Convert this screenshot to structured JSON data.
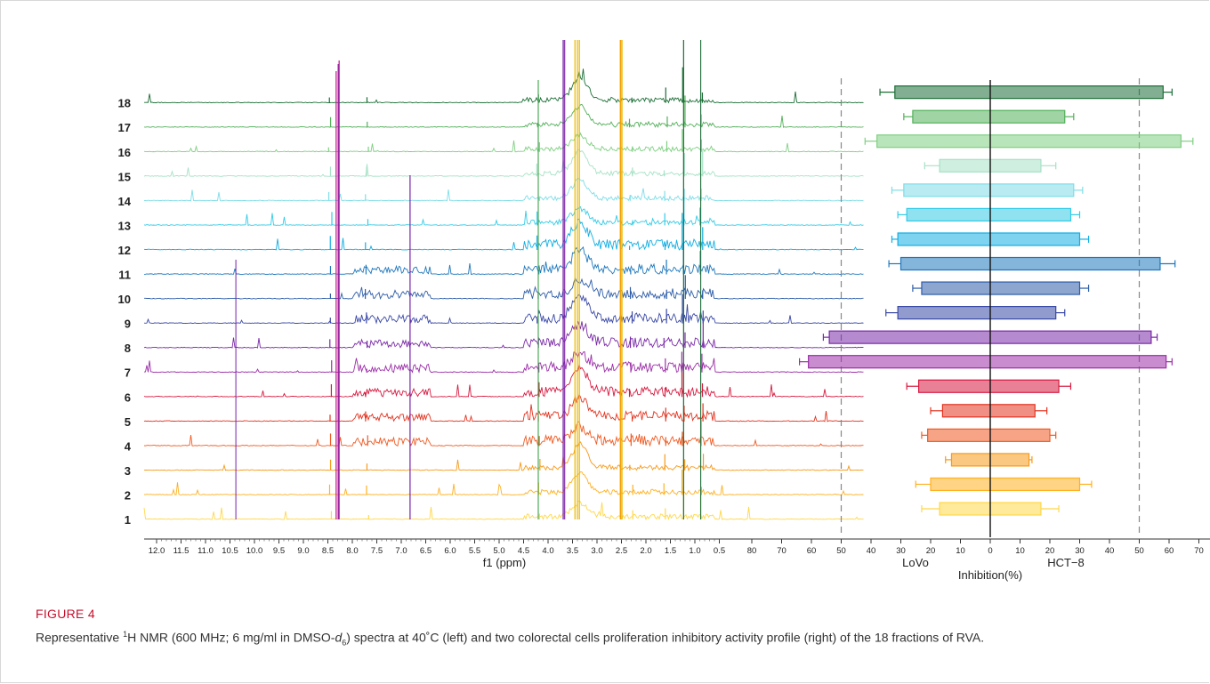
{
  "figure": {
    "label": "FIGURE 4",
    "caption": {
      "prefix": "Representative ",
      "sup": "1",
      "mid": "H NMR (600 MHz; 6 mg/ml in DMSO-",
      "italic": "d",
      "sub": "6",
      "suffix": ") spectra at 40˚C (left) and two colorectal cells proliferation inhibitory activity profile (right) of the 18 fractions of RVA."
    }
  },
  "colors": {
    "fractions": [
      "#ffd84a",
      "#ffb020",
      "#f79a1a",
      "#f05a22",
      "#e3331f",
      "#d7193f",
      "#9c2ea8",
      "#7a2aa8",
      "#3948a6",
      "#2e5da8",
      "#1f78bd",
      "#12aee3",
      "#34cbe6",
      "#7fdde8",
      "#a7e2c6",
      "#7fcf82",
      "#53b05a",
      "#1b6e36"
    ],
    "spike_purple": "#7a22a8",
    "spike_magenta": "#c2148a",
    "spike_gold": "#e8b800"
  },
  "nmr": {
    "rows": [
      "1",
      "2",
      "3",
      "4",
      "5",
      "6",
      "7",
      "8",
      "9",
      "10",
      "11",
      "12",
      "13",
      "14",
      "15",
      "16",
      "17",
      "18"
    ],
    "xticks": [
      "12.0",
      "11.5",
      "11.0",
      "10.5",
      "10.0",
      "9.5",
      "9.0",
      "8.5",
      "8.0",
      "7.5",
      "7.0",
      "6.5",
      "6.0",
      "5.5",
      "5.0",
      "4.5",
      "4.0",
      "3.5",
      "3.0",
      "2.5",
      "2.0",
      "1.5",
      "1.0",
      "0.5"
    ],
    "xlabel": "f1 (ppm)"
  },
  "chart_data": {
    "type": "bar",
    "categories": [
      "1",
      "2",
      "3",
      "4",
      "5",
      "6",
      "7",
      "8",
      "9",
      "10",
      "11",
      "12",
      "13",
      "14",
      "15",
      "16",
      "17",
      "18"
    ],
    "series": [
      {
        "name": "LoVo",
        "values": [
          17,
          20,
          13,
          21,
          16,
          24,
          61,
          54,
          31,
          23,
          30,
          31,
          28,
          29,
          17,
          38,
          26,
          32
        ],
        "errors": [
          6,
          5,
          2,
          2,
          4,
          4,
          3,
          2,
          4,
          3,
          4,
          2,
          3,
          4,
          5,
          4,
          3,
          5
        ]
      },
      {
        "name": "HCT−8",
        "values": [
          17,
          30,
          13,
          20,
          15,
          23,
          59,
          54,
          22,
          30,
          57,
          30,
          27,
          28,
          17,
          64,
          25,
          58
        ],
        "errors": [
          6,
          4,
          1,
          2,
          4,
          4,
          2,
          2,
          3,
          3,
          5,
          3,
          3,
          3,
          5,
          4,
          3,
          3
        ]
      }
    ],
    "xticks": [
      "80",
      "70",
      "60",
      "50",
      "40",
      "30",
      "20",
      "10",
      "0",
      "10",
      "20",
      "30",
      "40",
      "50",
      "60",
      "70",
      "80"
    ],
    "xlabel": "Inhibition(%)",
    "left_label": "LoVo",
    "right_label": "HCT−8",
    "xlim": [
      -80,
      80
    ],
    "threshold_lines": [
      -50,
      50
    ]
  }
}
